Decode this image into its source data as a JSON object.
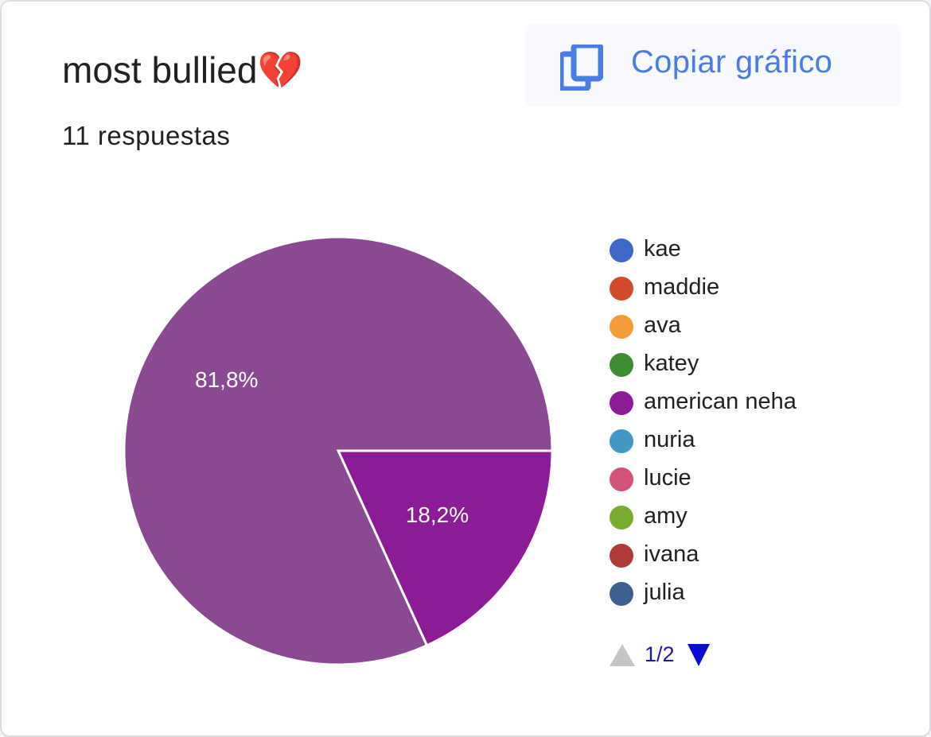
{
  "card": {
    "title": "most bullied💔",
    "subtitle": "11 respuestas",
    "copy_button": {
      "label": "Copiar gráfico",
      "icon": "copy-icon",
      "color": "#4a7de4"
    }
  },
  "chart_data": {
    "type": "pie",
    "slices": [
      {
        "name": "american neha",
        "value": 18.2,
        "label": "18,2%",
        "color": "#8b1c95"
      },
      {
        "name": "",
        "value": 81.8,
        "label": "81,8%",
        "color": "#8a4a92"
      }
    ],
    "legend": [
      {
        "label": "kae",
        "color": "#3f67c8"
      },
      {
        "label": "maddie",
        "color": "#d04a2b"
      },
      {
        "label": "ava",
        "color": "#f19c38"
      },
      {
        "label": "katey",
        "color": "#3e8c32"
      },
      {
        "label": "american neha",
        "color": "#8b1c95"
      },
      {
        "label": "nuria",
        "color": "#4397c4"
      },
      {
        "label": "lucie",
        "color": "#d2527a"
      },
      {
        "label": "amy",
        "color": "#79ab31"
      },
      {
        "label": "ivana",
        "color": "#ae3a3a"
      },
      {
        "label": "julia",
        "color": "#3d5f8e"
      }
    ],
    "legend_placement": "right",
    "pager": {
      "text": "1/2",
      "current_page": 1,
      "total_pages": 2
    }
  }
}
